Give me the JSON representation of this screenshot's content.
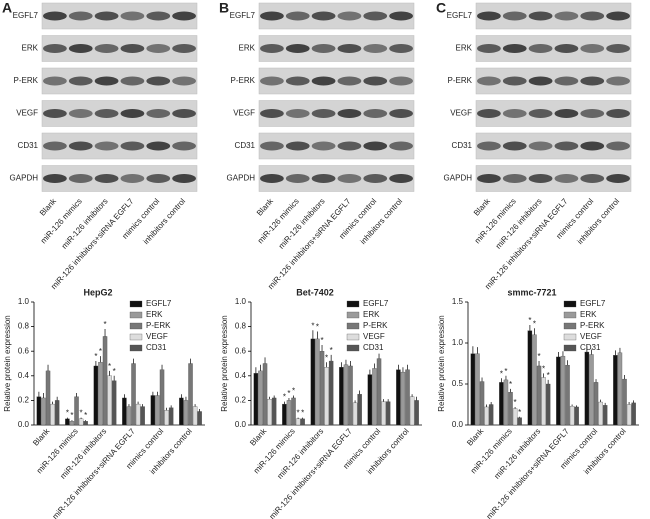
{
  "panels": [
    {
      "letter": "A",
      "proteins": [
        "EGFL7",
        "ERK",
        "P-ERK",
        "VEGF",
        "CD31",
        "GAPDH"
      ],
      "lanes": [
        "Blank",
        "miR-126 mimics",
        "miR-126 inhibitors",
        "miR-126 inhibitors+siRNA EGFL7",
        "mimics control",
        "inhibitors control"
      ]
    },
    {
      "letter": "B",
      "proteins": [
        "EGFL7",
        "ERK",
        "P-ERK",
        "VEGF",
        "CD31",
        "GAPDH"
      ],
      "lanes": [
        "Blank",
        "miR-126 mimics",
        "miR-126 inhibitors",
        "miR-126 inhibitors+siRNA EGFL7",
        "mimics control",
        "inhibitors control"
      ]
    },
    {
      "letter": "C",
      "proteins": [
        "EGFL7",
        "ERK",
        "P-ERK",
        "VEGF",
        "CD31",
        "GAPDH"
      ],
      "lanes": [
        "Blank",
        "miR-126 mimics",
        "miR-126 inhibitors",
        "miR-126 inhibitors+siRNA EGFL7",
        "mimics control",
        "inhibitors control"
      ]
    }
  ],
  "chart_data": [
    {
      "type": "bar",
      "title": "HepG2",
      "ylabel": "Relative protein expression",
      "categories": [
        "Blank",
        "miR-126 mimics",
        "miR-126 inhibitors",
        "miR-126 inhibitors+siRNA EGFL7",
        "mimics control",
        "inhibitors control"
      ],
      "ylim": [
        0,
        1
      ],
      "yticks": [
        {
          "value": 0,
          "label": "0.0"
        },
        0.2,
        0.4,
        0.6,
        0.8,
        {
          "value": 1,
          "label": "1.0"
        }
      ],
      "series": [
        {
          "name": "EGFL7",
          "color": "#111111",
          "values": [
            0.23,
            0.05,
            0.48,
            0.22,
            0.24,
            0.22
          ],
          "errors": [
            0.04,
            0.01,
            0.04,
            0.03,
            0.03,
            0.03
          ],
          "sig": [
            null,
            "*",
            "*",
            null,
            null,
            null
          ]
        },
        {
          "name": "ERK",
          "color": "#9a9a9a",
          "values": [
            0.22,
            0.03,
            0.51,
            0.15,
            0.24,
            0.2
          ],
          "errors": [
            0.04,
            0.01,
            0.05,
            0.02,
            0.03,
            0.03
          ],
          "sig": [
            null,
            "*",
            "*",
            null,
            null,
            null
          ]
        },
        {
          "name": "P-ERK",
          "color": "#777777",
          "values": [
            0.44,
            0.23,
            0.72,
            0.5,
            0.45,
            0.5
          ],
          "errors": [
            0.05,
            0.03,
            0.06,
            0.04,
            0.04,
            0.04
          ],
          "sig": [
            null,
            null,
            "*",
            null,
            null,
            null
          ]
        },
        {
          "name": "VEGF",
          "color": "#dddddd",
          "values": [
            0.17,
            0.05,
            0.4,
            0.17,
            0.12,
            0.15
          ],
          "errors": [
            0.02,
            0.01,
            0.04,
            0.02,
            0.02,
            0.02
          ],
          "sig": [
            null,
            "*",
            "*",
            null,
            null,
            null
          ]
        },
        {
          "name": "CD31",
          "color": "#555555",
          "values": [
            0.2,
            0.03,
            0.36,
            0.15,
            0.14,
            0.11
          ],
          "errors": [
            0.03,
            0.01,
            0.04,
            0.02,
            0.02,
            0.02
          ],
          "sig": [
            null,
            "*",
            "*",
            null,
            null,
            null
          ]
        }
      ]
    },
    {
      "type": "bar",
      "title": "Bet-7402",
      "ylabel": "Relative protein expression",
      "categories": [
        "Blank",
        "miR-126 mimics",
        "miR-126 inhibitors",
        "miR-126 inhibitors+siRNA EGFL7",
        "mimics control",
        "inhibitors control"
      ],
      "ylim": [
        0,
        1
      ],
      "yticks": [
        {
          "value": 0,
          "label": "0.0"
        },
        0.2,
        0.4,
        0.6,
        0.8,
        {
          "value": 1,
          "label": "1.0"
        }
      ],
      "series": [
        {
          "name": "EGFL7",
          "color": "#111111",
          "values": [
            0.42,
            0.17,
            0.7,
            0.47,
            0.41,
            0.45
          ],
          "errors": [
            0.05,
            0.02,
            0.07,
            0.04,
            0.04,
            0.04
          ],
          "sig": [
            null,
            "*",
            "*",
            null,
            null,
            null
          ]
        },
        {
          "name": "ERK",
          "color": "#9a9a9a",
          "values": [
            0.44,
            0.2,
            0.7,
            0.49,
            0.46,
            0.43
          ],
          "errors": [
            0.05,
            0.02,
            0.06,
            0.04,
            0.04,
            0.04
          ],
          "sig": [
            null,
            "*",
            "*",
            null,
            null,
            null
          ]
        },
        {
          "name": "P-ERK",
          "color": "#777777",
          "values": [
            0.5,
            0.22,
            0.6,
            0.48,
            0.54,
            0.45
          ],
          "errors": [
            0.05,
            0.02,
            0.05,
            0.04,
            0.04,
            0.04
          ],
          "sig": [
            null,
            "*",
            "*",
            null,
            null,
            null
          ]
        },
        {
          "name": "VEGF",
          "color": "#dddddd",
          "values": [
            0.21,
            0.05,
            0.47,
            0.18,
            0.19,
            0.23
          ],
          "errors": [
            0.02,
            0.01,
            0.04,
            0.02,
            0.02,
            0.02
          ],
          "sig": [
            null,
            "*",
            "*",
            null,
            null,
            null
          ]
        },
        {
          "name": "CD31",
          "color": "#555555",
          "values": [
            0.22,
            0.05,
            0.52,
            0.25,
            0.19,
            0.2
          ],
          "errors": [
            0.02,
            0.01,
            0.05,
            0.03,
            0.02,
            0.03
          ],
          "sig": [
            null,
            "*",
            "*",
            null,
            null,
            null
          ]
        }
      ]
    },
    {
      "type": "bar",
      "title": "smmc-7721",
      "ylabel": "Relative protein expression",
      "categories": [
        "Blank",
        "miR-126 mimics",
        "miR-126 inhibitors",
        "miR-126 inhibitors+siRNA EGFL7",
        "mimics control",
        "inhibitors control"
      ],
      "ylim": [
        0,
        1.5
      ],
      "yticks": [
        {
          "value": 0,
          "label": "0.0"
        },
        0.5,
        {
          "value": 1,
          "label": "1.0"
        },
        1.5
      ],
      "series": [
        {
          "name": "EGFL7",
          "color": "#111111",
          "values": [
            0.87,
            0.52,
            1.15,
            0.83,
            0.89,
            0.85
          ],
          "errors": [
            0.09,
            0.05,
            0.07,
            0.06,
            0.07,
            0.06
          ],
          "sig": [
            null,
            "*",
            "*",
            null,
            null,
            null
          ]
        },
        {
          "name": "ERK",
          "color": "#9a9a9a",
          "values": [
            0.87,
            0.55,
            1.1,
            0.84,
            0.86,
            0.88
          ],
          "errors": [
            0.08,
            0.05,
            0.08,
            0.06,
            0.06,
            0.06
          ],
          "sig": [
            null,
            "*",
            "*",
            null,
            null,
            null
          ]
        },
        {
          "name": "P-ERK",
          "color": "#777777",
          "values": [
            0.53,
            0.4,
            0.72,
            0.73,
            0.52,
            0.56
          ],
          "errors": [
            0.05,
            0.04,
            0.06,
            0.06,
            0.04,
            0.05
          ],
          "sig": [
            null,
            "*",
            "*",
            null,
            null,
            null
          ]
        },
        {
          "name": "VEGF",
          "color": "#dddddd",
          "values": [
            0.22,
            0.2,
            0.58,
            0.23,
            0.28,
            0.25
          ],
          "errors": [
            0.03,
            0.02,
            0.05,
            0.02,
            0.03,
            0.03
          ],
          "sig": [
            null,
            "*",
            "*",
            null,
            null,
            null
          ]
        },
        {
          "name": "CD31",
          "color": "#555555",
          "values": [
            0.25,
            0.09,
            0.5,
            0.22,
            0.24,
            0.27
          ],
          "errors": [
            0.03,
            0.01,
            0.05,
            0.02,
            0.03,
            0.03
          ],
          "sig": [
            null,
            "*",
            "*",
            null,
            null,
            null
          ]
        }
      ]
    }
  ]
}
